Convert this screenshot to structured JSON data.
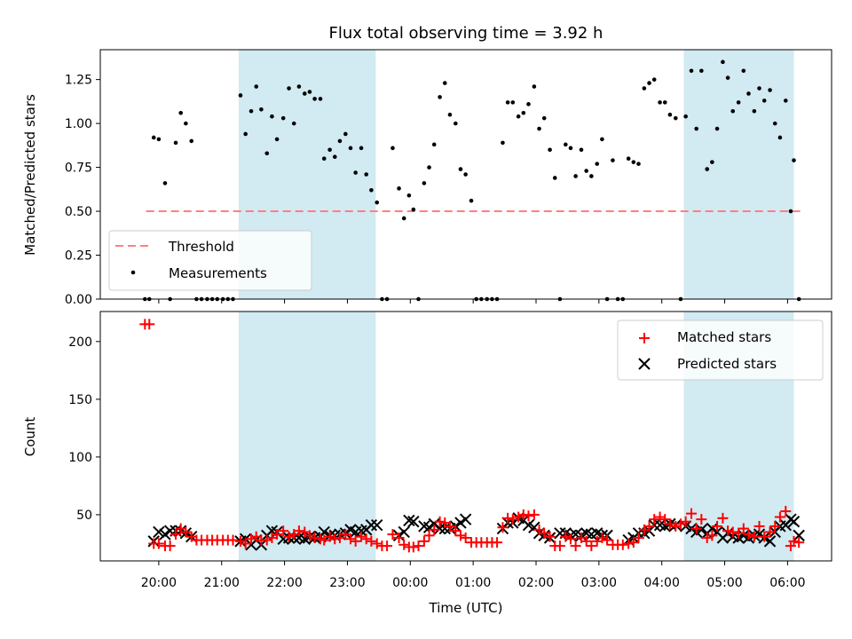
{
  "chart_data": [
    {
      "type": "scatter",
      "title": "Flux total observing time = 3.92 h",
      "xlabel": "",
      "ylabel": "Matched/Predicted stars",
      "ylim": [
        0,
        1.42
      ],
      "yticks": [
        "0.00",
        "0.25",
        "0.50",
        "0.75",
        "1.00",
        "1.25"
      ],
      "ytick_values": [
        0,
        0.25,
        0.5,
        0.75,
        1.0,
        1.25
      ],
      "threshold": {
        "name": "Threshold",
        "value": 0.5,
        "x_start": 19.8,
        "x_end": 30.2,
        "color": "#ff7f7f"
      },
      "legend": [
        "Threshold",
        "Measurements"
      ],
      "legend_position": "lower-left",
      "shaded_intervals": [
        [
          21.27,
          23.45
        ],
        [
          28.35,
          30.1
        ]
      ],
      "shade_color": "#add8e6",
      "series": [
        {
          "name": "Measurements",
          "x": [
            19.78,
            19.85,
            19.92,
            20.0,
            20.1,
            20.18,
            20.27,
            20.35,
            20.43,
            20.52,
            20.6,
            20.68,
            20.77,
            20.85,
            20.93,
            21.02,
            21.1,
            21.18,
            21.3,
            21.38,
            21.47,
            21.55,
            21.63,
            21.72,
            21.8,
            21.88,
            21.98,
            22.07,
            22.15,
            22.23,
            22.32,
            22.4,
            22.48,
            22.57,
            22.63,
            22.72,
            22.8,
            22.88,
            22.97,
            23.05,
            23.13,
            23.22,
            23.3,
            23.38,
            23.47,
            23.55,
            23.63,
            23.72,
            23.82,
            23.9,
            23.98,
            24.05,
            24.13,
            24.22,
            24.3,
            24.38,
            24.47,
            24.55,
            24.63,
            24.72,
            24.8,
            24.88,
            24.97,
            25.05,
            25.13,
            25.22,
            25.3,
            25.38,
            25.47,
            25.55,
            25.63,
            25.72,
            25.8,
            25.88,
            25.97,
            26.05,
            26.13,
            26.22,
            26.3,
            26.38,
            26.47,
            26.55,
            26.63,
            26.72,
            26.8,
            26.88,
            26.97,
            27.05,
            27.13,
            27.22,
            27.3,
            27.38,
            27.47,
            27.55,
            27.63,
            27.72,
            27.8,
            27.88,
            27.97,
            28.05,
            28.13,
            28.22,
            28.3,
            28.38,
            28.47,
            28.55,
            28.63,
            28.72,
            28.8,
            28.88,
            28.97,
            29.05,
            29.13,
            29.22,
            29.3,
            29.38,
            29.47,
            29.55,
            29.63,
            29.72,
            29.8,
            29.88,
            29.97,
            30.05,
            30.1,
            30.18
          ],
          "y": [
            0.0,
            0.0,
            0.92,
            0.91,
            0.66,
            0.0,
            0.89,
            1.06,
            1.0,
            0.9,
            0.0,
            0.0,
            0.0,
            0.0,
            0.0,
            0.0,
            0.0,
            0.0,
            1.16,
            0.94,
            1.07,
            1.21,
            1.08,
            0.83,
            1.04,
            0.91,
            1.03,
            1.2,
            1.0,
            1.21,
            1.17,
            1.18,
            1.14,
            1.14,
            0.8,
            0.85,
            0.81,
            0.9,
            0.94,
            0.86,
            0.72,
            0.86,
            0.71,
            0.62,
            0.55,
            0.0,
            0.0,
            0.86,
            0.63,
            0.46,
            0.59,
            0.51,
            0.0,
            0.66,
            0.75,
            0.88,
            1.15,
            1.23,
            1.05,
            1.0,
            0.74,
            0.71,
            0.56,
            0.0,
            0.0,
            0.0,
            0.0,
            0.0,
            0.89,
            1.12,
            1.12,
            1.04,
            1.06,
            1.11,
            1.21,
            0.97,
            1.03,
            0.85,
            0.69,
            0.0,
            0.88,
            0.86,
            0.7,
            0.85,
            0.73,
            0.7,
            0.77,
            0.91,
            0.0,
            0.79,
            0.0,
            0.0,
            0.8,
            0.78,
            0.77,
            1.2,
            1.23,
            1.25,
            1.12,
            1.12,
            1.05,
            1.03,
            0.0,
            1.04,
            1.3,
            0.97,
            1.3,
            0.74,
            0.78,
            0.97,
            1.35,
            1.26,
            1.07,
            1.12,
            1.3,
            1.17,
            1.07,
            1.2,
            1.13,
            1.19,
            1.0,
            0.92,
            1.13,
            0.5,
            0.79,
            0.0
          ]
        }
      ]
    },
    {
      "type": "scatter",
      "title": "",
      "xlabel": "Time (UTC)",
      "ylabel": "Count",
      "ylim": [
        10,
        226
      ],
      "yticks": [
        "50",
        "100",
        "150",
        "200"
      ],
      "ytick_values": [
        50,
        100,
        150,
        200
      ],
      "xlim": [
        19.07,
        30.7
      ],
      "xticks": [
        "20:00",
        "21:00",
        "22:00",
        "23:00",
        "00:00",
        "01:00",
        "02:00",
        "03:00",
        "04:00",
        "05:00",
        "06:00"
      ],
      "xtick_values": [
        20,
        21,
        22,
        23,
        24,
        25,
        26,
        27,
        28,
        29,
        30
      ],
      "legend": [
        "Matched stars",
        "Predicted stars"
      ],
      "legend_position": "upper-right",
      "shaded_intervals": [
        [
          21.27,
          23.45
        ],
        [
          28.35,
          30.1
        ]
      ],
      "series": [
        {
          "name": "Matched stars",
          "color": "#ff0000",
          "marker": "+",
          "x": [
            19.78,
            19.85,
            19.92,
            20.0,
            20.1,
            20.18,
            20.27,
            20.35,
            20.43,
            20.52,
            20.6,
            20.68,
            20.77,
            20.85,
            20.93,
            21.02,
            21.1,
            21.18,
            21.3,
            21.38,
            21.47,
            21.55,
            21.63,
            21.72,
            21.8,
            21.88,
            21.98,
            22.07,
            22.15,
            22.23,
            22.32,
            22.4,
            22.48,
            22.57,
            22.63,
            22.72,
            22.8,
            22.88,
            22.97,
            23.05,
            23.13,
            23.22,
            23.3,
            23.38,
            23.47,
            23.55,
            23.63,
            23.72,
            23.82,
            23.9,
            23.98,
            24.05,
            24.13,
            24.22,
            24.3,
            24.38,
            24.47,
            24.55,
            24.63,
            24.72,
            24.8,
            24.88,
            24.97,
            25.05,
            25.13,
            25.22,
            25.3,
            25.38,
            25.47,
            25.55,
            25.63,
            25.72,
            25.8,
            25.88,
            25.97,
            26.05,
            26.13,
            26.22,
            26.3,
            26.38,
            26.47,
            26.55,
            26.63,
            26.72,
            26.8,
            26.88,
            26.97,
            27.05,
            27.13,
            27.22,
            27.3,
            27.38,
            27.47,
            27.55,
            27.63,
            27.72,
            27.8,
            27.88,
            27.97,
            28.05,
            28.13,
            28.22,
            28.3,
            28.38,
            28.47,
            28.55,
            28.63,
            28.72,
            28.8,
            28.88,
            28.97,
            29.05,
            29.13,
            29.22,
            29.3,
            29.38,
            29.47,
            29.55,
            29.63,
            29.72,
            29.8,
            29.88,
            29.97,
            30.05,
            30.1,
            30.18
          ],
          "y": [
            215,
            215,
            25,
            25,
            23,
            23,
            33,
            38,
            35,
            31,
            28,
            28,
            28,
            28,
            28,
            28,
            28,
            28,
            27,
            25,
            29,
            31,
            28,
            28,
            30,
            33,
            36,
            31,
            33,
            36,
            35,
            32,
            30,
            29,
            28,
            31,
            29,
            30,
            33,
            29,
            27,
            31,
            29,
            27,
            25,
            23,
            23,
            33,
            30,
            24,
            22,
            22,
            23,
            27,
            32,
            37,
            44,
            43,
            40,
            36,
            32,
            30,
            26,
            26,
            26,
            26,
            26,
            26,
            39,
            47,
            46,
            48,
            50,
            49,
            50,
            37,
            34,
            31,
            23,
            23,
            31,
            29,
            23,
            30,
            27,
            23,
            27,
            30,
            28,
            24,
            24,
            24,
            25,
            26,
            30,
            37,
            40,
            46,
            48,
            46,
            42,
            40,
            42,
            44,
            51,
            38,
            46,
            30,
            32,
            40,
            47,
            36,
            35,
            34,
            38,
            33,
            31,
            40,
            31,
            35,
            40,
            48,
            53,
            23,
            27,
            26
          ]
        },
        {
          "name": "Predicted stars",
          "color": "#000000",
          "marker": "x",
          "x": [
            19.92,
            20.0,
            20.1,
            20.18,
            20.27,
            20.35,
            20.43,
            20.52,
            21.3,
            21.38,
            21.47,
            21.55,
            21.63,
            21.72,
            21.8,
            21.88,
            21.98,
            22.07,
            22.15,
            22.23,
            22.32,
            22.4,
            22.48,
            22.57,
            22.63,
            22.72,
            22.8,
            22.88,
            22.97,
            23.05,
            23.13,
            23.22,
            23.3,
            23.38,
            23.47,
            23.82,
            23.9,
            23.98,
            24.05,
            24.22,
            24.3,
            24.38,
            24.47,
            24.55,
            24.63,
            24.72,
            24.8,
            24.88,
            25.47,
            25.55,
            25.63,
            25.72,
            25.8,
            25.88,
            25.97,
            26.05,
            26.13,
            26.22,
            26.38,
            26.47,
            26.55,
            26.63,
            26.72,
            26.8,
            26.88,
            26.97,
            27.05,
            27.13,
            27.47,
            27.55,
            27.63,
            27.72,
            27.8,
            27.88,
            27.97,
            28.05,
            28.13,
            28.22,
            28.38,
            28.47,
            28.55,
            28.63,
            28.72,
            28.8,
            28.88,
            28.97,
            29.05,
            29.13,
            29.22,
            29.3,
            29.38,
            29.47,
            29.55,
            29.63,
            29.72,
            29.8,
            29.88,
            29.97,
            30.05,
            30.1,
            30.18
          ],
          "y": [
            27,
            35,
            33,
            36,
            36,
            36,
            34,
            31,
            27,
            29,
            24,
            28,
            24,
            32,
            36,
            35,
            29,
            30,
            30,
            30,
            29,
            31,
            30,
            31,
            35,
            32,
            32,
            33,
            34,
            37,
            35,
            36,
            37,
            41,
            41,
            32,
            35,
            45,
            44,
            40,
            39,
            42,
            38,
            38,
            38,
            40,
            43,
            46,
            38,
            43,
            43,
            47,
            45,
            41,
            39,
            34,
            32,
            30,
            34,
            34,
            32,
            33,
            32,
            34,
            33,
            34,
            32,
            32,
            28,
            30,
            34,
            34,
            36,
            41,
            41,
            40,
            42,
            41,
            40,
            38,
            35,
            37,
            34,
            38,
            35,
            30,
            34,
            31,
            30,
            32,
            30,
            32,
            33,
            30,
            27,
            35,
            40,
            41,
            46,
            44,
            32
          ]
        }
      ]
    }
  ]
}
